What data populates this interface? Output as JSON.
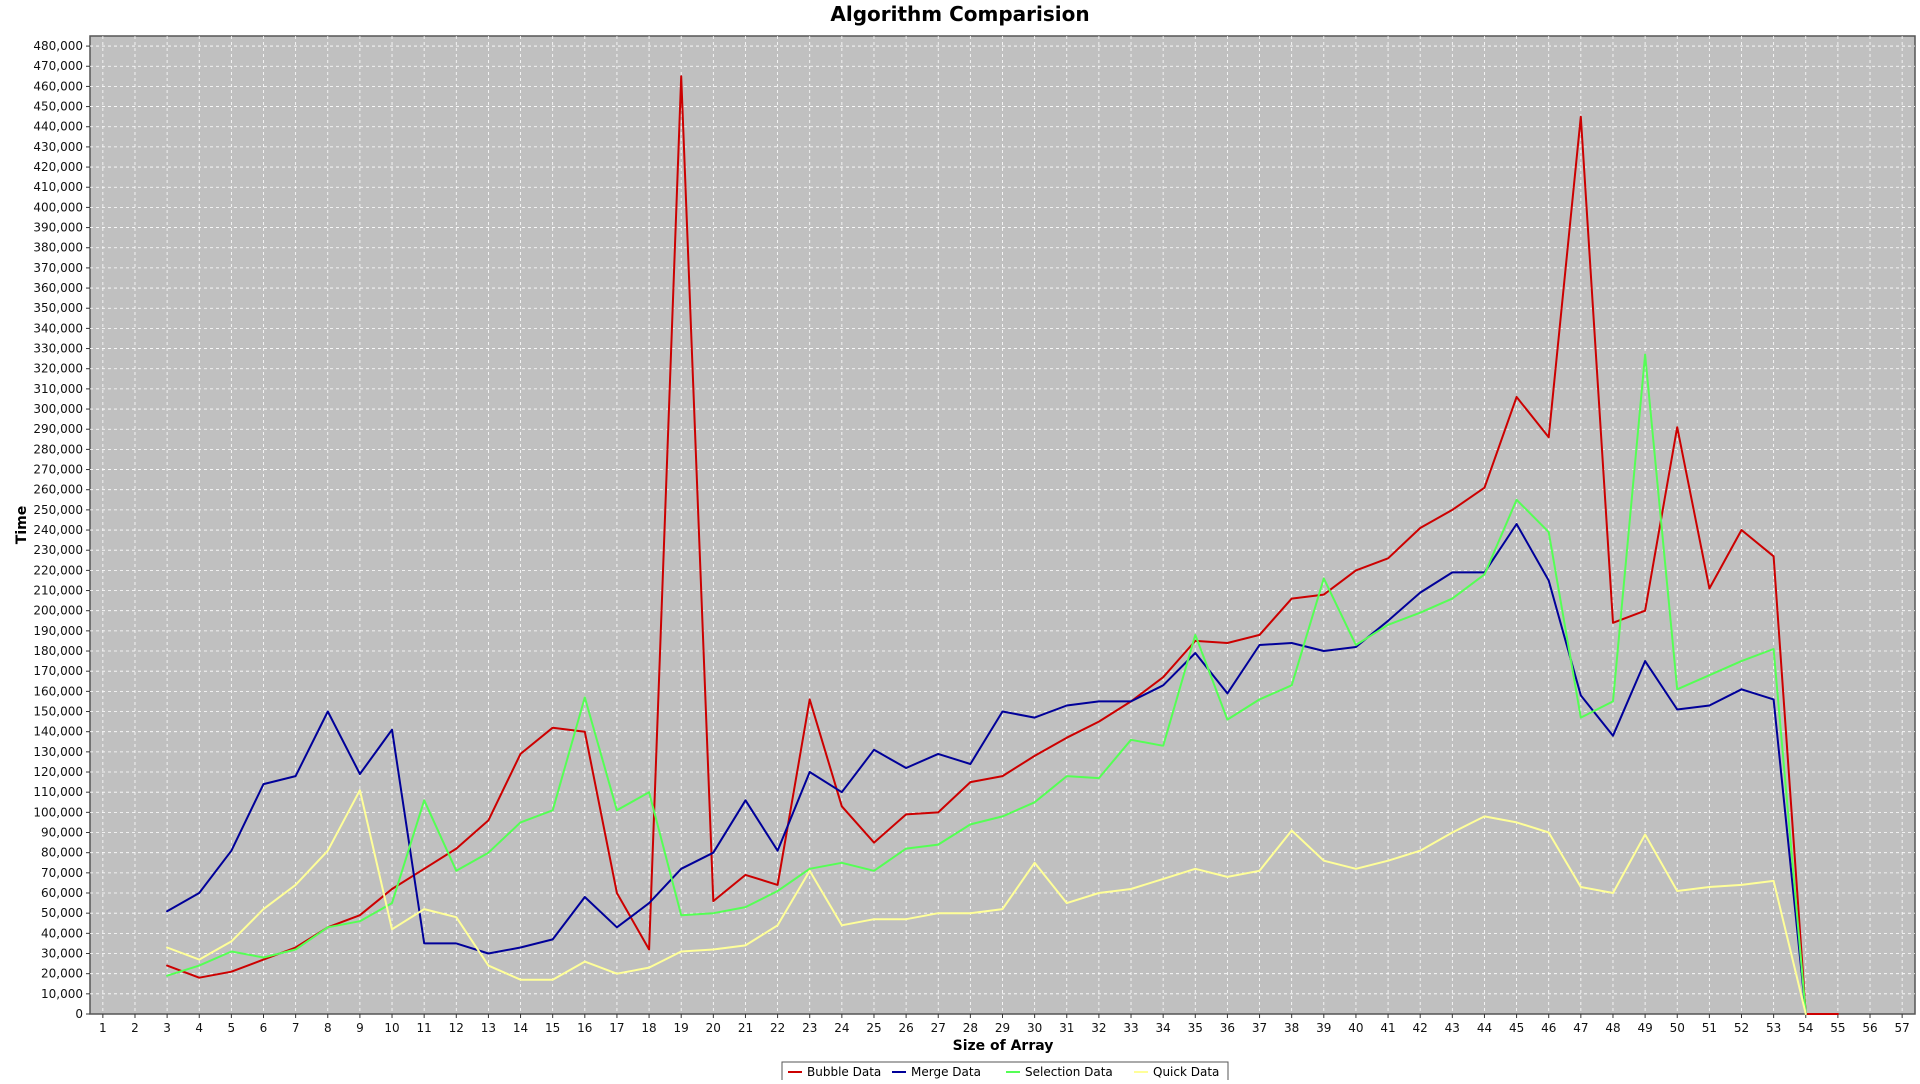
{
  "chart_data": {
    "type": "line",
    "title": "Algorithm Comparision",
    "xlabel": "Size of Array",
    "ylabel": "Time",
    "x": [
      1,
      2,
      3,
      4,
      5,
      6,
      7,
      8,
      9,
      10,
      11,
      12,
      13,
      14,
      15,
      16,
      17,
      18,
      19,
      20,
      21,
      22,
      23,
      24,
      25,
      26,
      27,
      28,
      29,
      30,
      31,
      32,
      33,
      34,
      35,
      36,
      37,
      38,
      39,
      40,
      41,
      42,
      43,
      44,
      45,
      46,
      47,
      48,
      49,
      50,
      51,
      52,
      53,
      54,
      55,
      56,
      57
    ],
    "xlim": [
      0.6,
      57.4
    ],
    "ylim": [
      0,
      485000
    ],
    "y_tick_step": 10000,
    "grid": true,
    "legend_position": "bottom-center",
    "colors": {
      "plot_background": "#c0c0c0",
      "grid": "#ffffff",
      "frame": "#555555"
    },
    "series": [
      {
        "name": "Bubble Data",
        "color": "#cc0000",
        "points": [
          [
            3,
            24000
          ],
          [
            4,
            18000
          ],
          [
            5,
            21000
          ],
          [
            6,
            27000
          ],
          [
            7,
            33000
          ],
          [
            8,
            43000
          ],
          [
            9,
            49000
          ],
          [
            10,
            62000
          ],
          [
            11,
            72000
          ],
          [
            12,
            82000
          ],
          [
            13,
            96000
          ],
          [
            14,
            129000
          ],
          [
            15,
            142000
          ],
          [
            16,
            140000
          ],
          [
            17,
            60000
          ],
          [
            18,
            32000
          ],
          [
            19,
            465000
          ],
          [
            20,
            56000
          ],
          [
            21,
            69000
          ],
          [
            22,
            64000
          ],
          [
            23,
            156000
          ],
          [
            24,
            103000
          ],
          [
            25,
            85000
          ],
          [
            26,
            99000
          ],
          [
            27,
            100000
          ],
          [
            28,
            115000
          ],
          [
            29,
            118000
          ],
          [
            30,
            128000
          ],
          [
            31,
            137000
          ],
          [
            32,
            145000
          ],
          [
            33,
            155000
          ],
          [
            34,
            167000
          ],
          [
            35,
            185000
          ],
          [
            36,
            184000
          ],
          [
            37,
            188000
          ],
          [
            38,
            206000
          ],
          [
            39,
            208000
          ],
          [
            40,
            220000
          ],
          [
            41,
            226000
          ],
          [
            42,
            241000
          ],
          [
            43,
            250000
          ],
          [
            44,
            261000
          ],
          [
            45,
            306000
          ],
          [
            46,
            286000
          ],
          [
            47,
            445000
          ],
          [
            48,
            194000
          ],
          [
            49,
            200000
          ],
          [
            50,
            291000
          ],
          [
            51,
            211000
          ],
          [
            52,
            240000
          ],
          [
            53,
            227000
          ],
          [
            54,
            0
          ],
          [
            55,
            0
          ]
        ]
      },
      {
        "name": "Merge Data",
        "color": "#000099",
        "points": [
          [
            3,
            51000
          ],
          [
            4,
            60000
          ],
          [
            5,
            81000
          ],
          [
            6,
            114000
          ],
          [
            7,
            118000
          ],
          [
            8,
            150000
          ],
          [
            9,
            119000
          ],
          [
            10,
            141000
          ],
          [
            11,
            35000
          ],
          [
            12,
            35000
          ],
          [
            13,
            30000
          ],
          [
            14,
            33000
          ],
          [
            15,
            37000
          ],
          [
            16,
            58000
          ],
          [
            17,
            43000
          ],
          [
            18,
            55000
          ],
          [
            19,
            72000
          ],
          [
            20,
            80000
          ],
          [
            21,
            106000
          ],
          [
            22,
            81000
          ],
          [
            23,
            120000
          ],
          [
            24,
            110000
          ],
          [
            25,
            131000
          ],
          [
            26,
            122000
          ],
          [
            27,
            129000
          ],
          [
            28,
            124000
          ],
          [
            29,
            150000
          ],
          [
            30,
            147000
          ],
          [
            31,
            153000
          ],
          [
            32,
            155000
          ],
          [
            33,
            155000
          ],
          [
            34,
            163000
          ],
          [
            35,
            179000
          ],
          [
            36,
            159000
          ],
          [
            37,
            183000
          ],
          [
            38,
            184000
          ],
          [
            39,
            180000
          ],
          [
            40,
            182000
          ],
          [
            41,
            195000
          ],
          [
            42,
            209000
          ],
          [
            43,
            219000
          ],
          [
            44,
            219000
          ],
          [
            45,
            243000
          ],
          [
            46,
            215000
          ],
          [
            47,
            158000
          ],
          [
            48,
            138000
          ],
          [
            49,
            175000
          ],
          [
            50,
            151000
          ],
          [
            51,
            153000
          ],
          [
            52,
            161000
          ],
          [
            53,
            156000
          ],
          [
            54,
            0
          ]
        ]
      },
      {
        "name": "Selection Data",
        "color": "#55ff55",
        "points": [
          [
            3,
            19000
          ],
          [
            4,
            24000
          ],
          [
            5,
            31000
          ],
          [
            6,
            28000
          ],
          [
            7,
            32000
          ],
          [
            8,
            43000
          ],
          [
            9,
            46000
          ],
          [
            10,
            55000
          ],
          [
            11,
            106000
          ],
          [
            12,
            71000
          ],
          [
            13,
            80000
          ],
          [
            14,
            95000
          ],
          [
            15,
            101000
          ],
          [
            16,
            157000
          ],
          [
            17,
            101000
          ],
          [
            18,
            110000
          ],
          [
            19,
            49000
          ],
          [
            20,
            50000
          ],
          [
            21,
            53000
          ],
          [
            22,
            61000
          ],
          [
            23,
            72000
          ],
          [
            24,
            75000
          ],
          [
            25,
            71000
          ],
          [
            26,
            82000
          ],
          [
            27,
            84000
          ],
          [
            28,
            94000
          ],
          [
            29,
            98000
          ],
          [
            30,
            105000
          ],
          [
            31,
            118000
          ],
          [
            32,
            117000
          ],
          [
            33,
            136000
          ],
          [
            34,
            133000
          ],
          [
            35,
            188000
          ],
          [
            36,
            146000
          ],
          [
            37,
            156000
          ],
          [
            38,
            163000
          ],
          [
            39,
            216000
          ],
          [
            40,
            183000
          ],
          [
            41,
            193000
          ],
          [
            42,
            199000
          ],
          [
            43,
            206000
          ],
          [
            44,
            218000
          ],
          [
            45,
            255000
          ],
          [
            46,
            239000
          ],
          [
            47,
            147000
          ],
          [
            48,
            155000
          ],
          [
            49,
            327000
          ],
          [
            50,
            161000
          ],
          [
            51,
            168000
          ],
          [
            52,
            175000
          ],
          [
            53,
            181000
          ],
          [
            54,
            0
          ]
        ]
      },
      {
        "name": "Quick Data",
        "color": "#ffff99",
        "points": [
          [
            3,
            33000
          ],
          [
            4,
            27000
          ],
          [
            5,
            36000
          ],
          [
            6,
            52000
          ],
          [
            7,
            64000
          ],
          [
            8,
            81000
          ],
          [
            9,
            111000
          ],
          [
            10,
            42000
          ],
          [
            11,
            52000
          ],
          [
            12,
            48000
          ],
          [
            13,
            24000
          ],
          [
            14,
            17000
          ],
          [
            15,
            17000
          ],
          [
            16,
            26000
          ],
          [
            17,
            20000
          ],
          [
            18,
            23000
          ],
          [
            19,
            31000
          ],
          [
            20,
            32000
          ],
          [
            21,
            34000
          ],
          [
            22,
            44000
          ],
          [
            23,
            71000
          ],
          [
            24,
            44000
          ],
          [
            25,
            47000
          ],
          [
            26,
            47000
          ],
          [
            27,
            50000
          ],
          [
            28,
            50000
          ],
          [
            29,
            52000
          ],
          [
            30,
            75000
          ],
          [
            31,
            55000
          ],
          [
            32,
            60000
          ],
          [
            33,
            62000
          ],
          [
            34,
            67000
          ],
          [
            35,
            72000
          ],
          [
            36,
            68000
          ],
          [
            37,
            71000
          ],
          [
            38,
            91000
          ],
          [
            39,
            76000
          ],
          [
            40,
            72000
          ],
          [
            41,
            76000
          ],
          [
            42,
            81000
          ],
          [
            43,
            90000
          ],
          [
            44,
            98000
          ],
          [
            45,
            95000
          ],
          [
            46,
            90000
          ],
          [
            47,
            63000
          ],
          [
            48,
            60000
          ],
          [
            49,
            89000
          ],
          [
            50,
            61000
          ],
          [
            51,
            63000
          ],
          [
            52,
            64000
          ],
          [
            53,
            66000
          ],
          [
            54,
            0
          ]
        ]
      }
    ]
  }
}
